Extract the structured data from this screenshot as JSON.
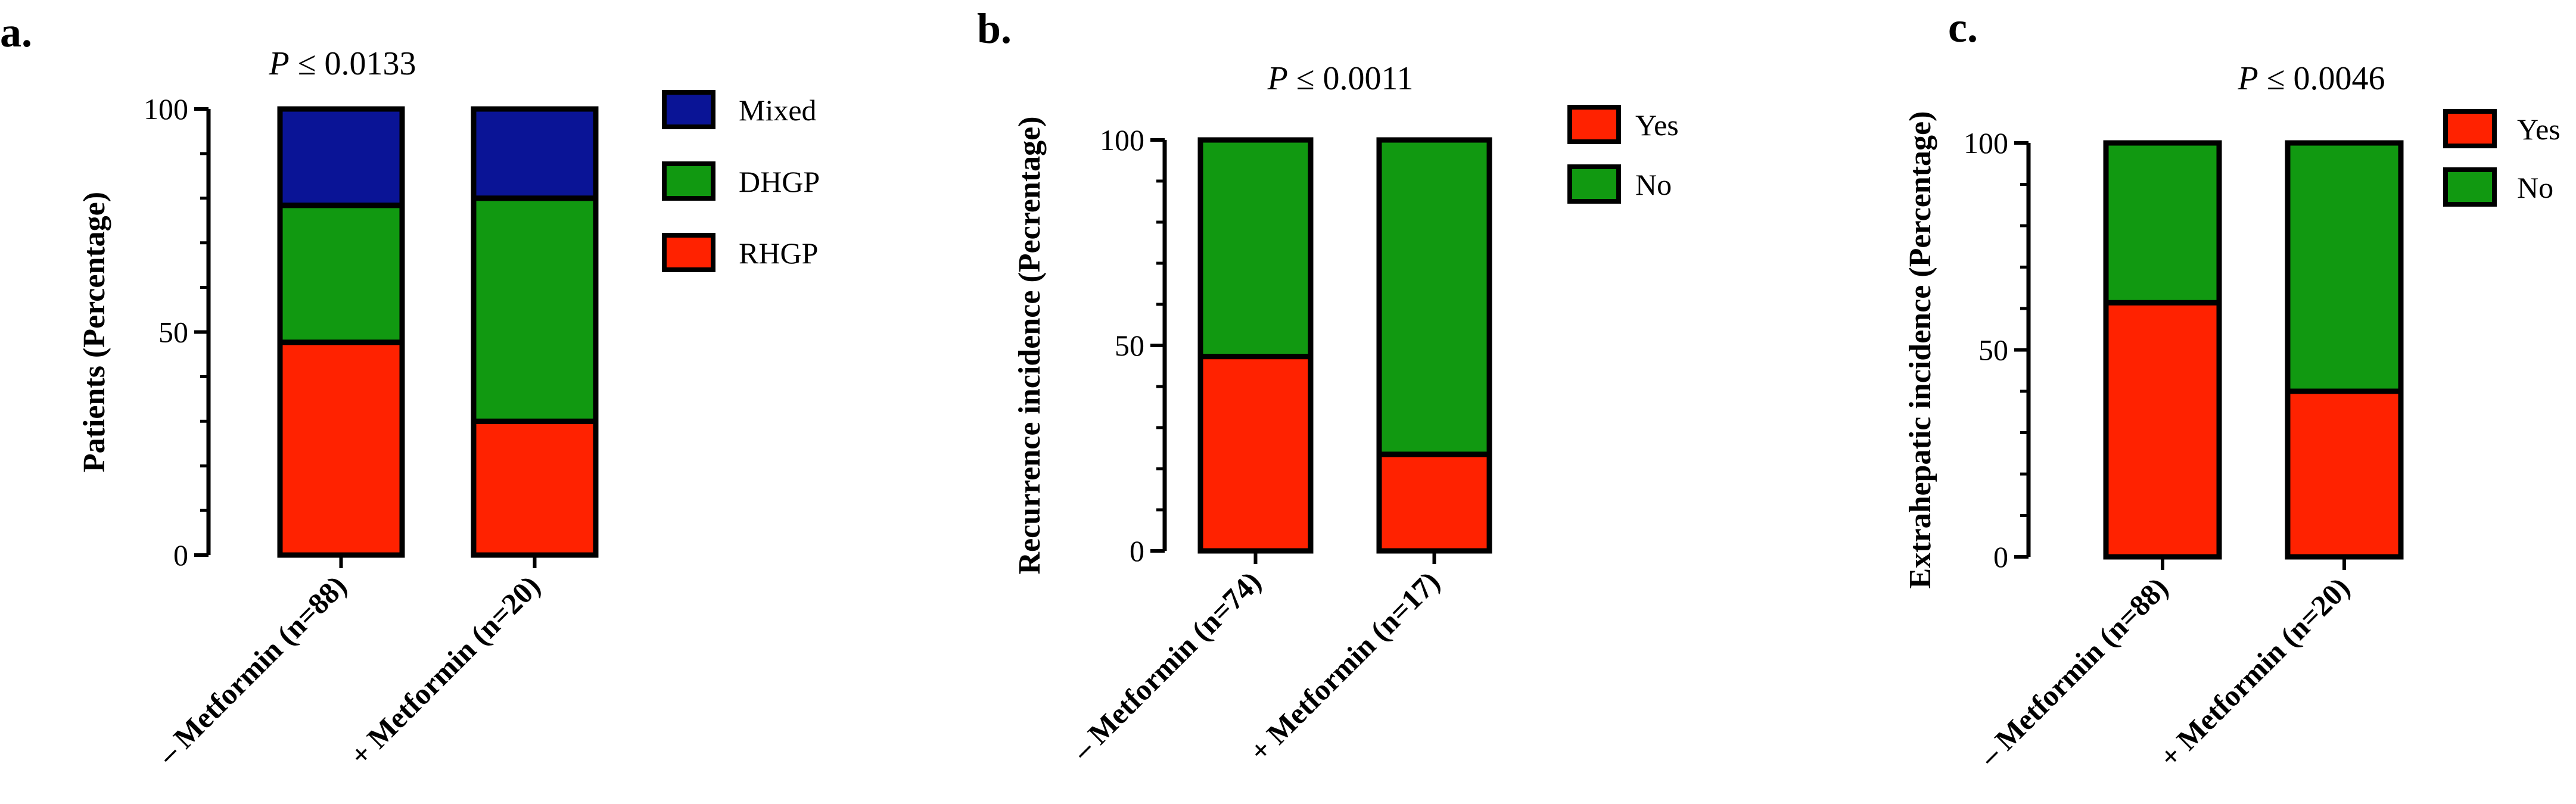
{
  "colors": {
    "RHGP": "#ff2200",
    "DHGP": "#119911",
    "Mixed": "#0a1496",
    "Yes": "#ff2200",
    "No": "#119911",
    "outline": "#000000"
  },
  "chart_data": [
    {
      "type": "bar",
      "stacked": true,
      "panel_label": "a.",
      "p_symbol": "P",
      "p_text": " ≤ 0.0133",
      "title": "P ≤ 0.0133",
      "ylabel": "Patients (Percentage)",
      "xlabel": "",
      "ylim": [
        0,
        100
      ],
      "yticks": [
        "0",
        "50",
        "100"
      ],
      "categories": [
        "– Metformin (n=88)",
        "+ Metformin (n=20)"
      ],
      "series": [
        {
          "name": "RHGP",
          "values": [
            47.7,
            30.0
          ]
        },
        {
          "name": "DHGP",
          "values": [
            30.7,
            50.0
          ]
        },
        {
          "name": "Mixed",
          "values": [
            21.6,
            20.0
          ]
        }
      ],
      "legend": [
        "Mixed",
        "DHGP",
        "RHGP"
      ],
      "legend_position": "right"
    },
    {
      "type": "bar",
      "stacked": true,
      "panel_label": "b.",
      "p_symbol": "P",
      "p_text": " ≤ 0.0011",
      "title": "P ≤ 0.0011",
      "ylabel": "Recurrence incidence (Pecrentage)",
      "xlabel": "",
      "ylim": [
        0,
        100
      ],
      "yticks": [
        "0",
        "50",
        "100"
      ],
      "categories": [
        "– Metformin (n=74)",
        "+ Metformin (n=17)"
      ],
      "series": [
        {
          "name": "Yes",
          "values": [
            47.3,
            23.5
          ]
        },
        {
          "name": "No",
          "values": [
            52.7,
            76.5
          ]
        }
      ],
      "legend": [
        "Yes",
        "No"
      ],
      "legend_position": "right"
    },
    {
      "type": "bar",
      "stacked": true,
      "panel_label": "c.",
      "p_symbol": "P",
      "p_text": " ≤ 0.0046",
      "title": "P ≤ 0.0046",
      "ylabel": "Extrahepatic incidence (Percentage)",
      "xlabel": "",
      "ylim": [
        0,
        100
      ],
      "yticks": [
        "0",
        "50",
        "100"
      ],
      "categories": [
        "– Metformin (n=88)",
        "+ Metformin (n=20)"
      ],
      "series": [
        {
          "name": "Yes",
          "values": [
            61.4,
            40.0
          ]
        },
        {
          "name": "No",
          "values": [
            38.6,
            60.0
          ]
        }
      ],
      "legend": [
        "Yes",
        "No"
      ],
      "legend_position": "right"
    }
  ]
}
